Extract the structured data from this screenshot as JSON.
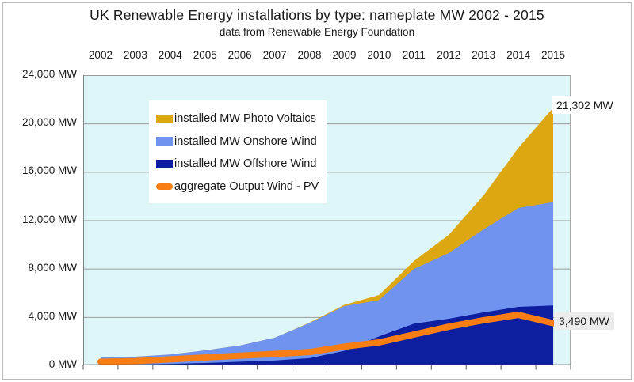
{
  "chart_data": {
    "type": "area",
    "stacked": true,
    "title": "UK Renewable Energy installations by type: nameplate MW  2002 - 2015",
    "subtitle": "data from Renewable Energy Foundation",
    "categories": [
      "2002",
      "2003",
      "2004",
      "2005",
      "2006",
      "2007",
      "2008",
      "2009",
      "2010",
      "2011",
      "2012",
      "2013",
      "2014",
      "2015"
    ],
    "series": [
      {
        "name": "installed MW Photo Voltaics",
        "role": "area",
        "color": "#DCA711",
        "values": [
          0,
          0,
          0,
          0,
          0,
          0,
          30,
          100,
          420,
          650,
          1500,
          2810,
          4970,
          7802
        ]
      },
      {
        "name": "installed MW Onshore Wind",
        "role": "area",
        "color": "#7093F0",
        "values": [
          620,
          660,
          780,
          1040,
          1340,
          1890,
          2900,
          3700,
          3000,
          4530,
          5430,
          6870,
          8170,
          8550
        ]
      },
      {
        "name": "installed MW Offshore Wind",
        "role": "area",
        "color": "#0D1FA0",
        "values": [
          30,
          60,
          120,
          200,
          300,
          400,
          600,
          1200,
          2400,
          3450,
          3860,
          4380,
          4840,
          4950
        ]
      },
      {
        "name": "aggregate Output Wind - PV",
        "role": "line",
        "color": "#F87D14",
        "values": [
          300,
          350,
          500,
          650,
          800,
          950,
          1100,
          1550,
          1900,
          2550,
          3200,
          3730,
          4180,
          3490
        ]
      }
    ],
    "ylim": [
      0,
      24000
    ],
    "y_tick_values": [
      24000,
      20000,
      16000,
      12000,
      8000,
      4000,
      0
    ],
    "y_tick_labels": [
      "24,000 MW",
      "20,000 MW",
      "16,000 MW",
      "12,000 MW",
      "8,000 MW",
      "4,000 MW",
      "0 MW"
    ],
    "grid": true,
    "legend_position": "inside-top-left",
    "plot_bg": "#DFF6F9",
    "grid_color": "#9B9B9B",
    "axis_color": "#3F3F3F",
    "annotations": {
      "total_2015": "21,302 MW",
      "output_2015": "3,490 MW"
    }
  }
}
